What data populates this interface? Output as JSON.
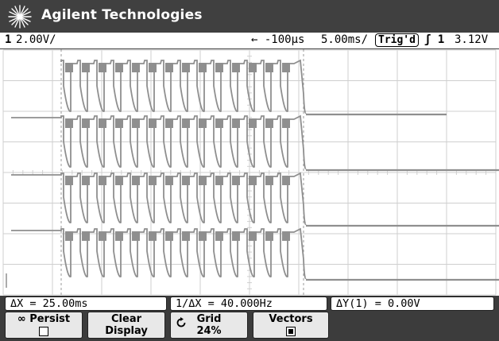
{
  "header": {
    "brand": "Agilent Technologies",
    "logo_icon": "agilent-spark-icon"
  },
  "status": {
    "channel": "1",
    "channel_scale": "2.00V/",
    "time_delay": "← -100µs",
    "time_scale": "5.00ms/",
    "trigger_state": "Trig'd",
    "trigger_source": "ʃ 1",
    "trigger_level": "3.12V"
  },
  "measurements": {
    "delta_x": "ΔX = 25.00ms",
    "inverse_delta_x": "1/ΔX = 40.000Hz",
    "delta_y": "ΔY(1) = 0.00V"
  },
  "softkeys": {
    "persist": {
      "label": "∞ Persist",
      "checked": false
    },
    "clear": {
      "line1": "Clear",
      "line2": "Display"
    },
    "grid": {
      "label": "Grid",
      "value": "24%",
      "icon": "rotate-knob-icon"
    },
    "vectors": {
      "label": "Vectors",
      "checked": true
    }
  },
  "display": {
    "trace_color": "#8f8f8f",
    "grid_color": "#cfcfcf",
    "background": "#ffffff"
  }
}
